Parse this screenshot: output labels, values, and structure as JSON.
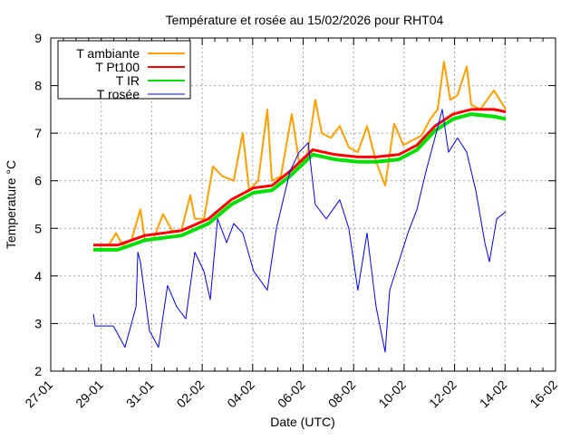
{
  "chart_data": {
    "type": "line",
    "title": "Température et rosée au 15/02/2026 pour RHT04",
    "xlabel": "Date (UTC)",
    "ylabel": "Temperature °C",
    "x_unit": "days since 27-01 00:00",
    "xlim": [
      0,
      20
    ],
    "ylim": [
      2,
      9
    ],
    "xticks": [
      {
        "v": 0,
        "label": "27-01"
      },
      {
        "v": 2,
        "label": "29-01"
      },
      {
        "v": 4,
        "label": "31-01"
      },
      {
        "v": 6,
        "label": "02-02"
      },
      {
        "v": 8,
        "label": "04-02"
      },
      {
        "v": 10,
        "label": "06-02"
      },
      {
        "v": 12,
        "label": "08-02"
      },
      {
        "v": 14,
        "label": "10-02"
      },
      {
        "v": 16,
        "label": "12-02"
      },
      {
        "v": 18,
        "label": "14-02"
      },
      {
        "v": 20,
        "label": "16-02"
      }
    ],
    "yticks": [
      {
        "v": 2,
        "label": "2"
      },
      {
        "v": 3,
        "label": "3"
      },
      {
        "v": 4,
        "label": "4"
      },
      {
        "v": 5,
        "label": "5"
      },
      {
        "v": 6,
        "label": "6"
      },
      {
        "v": 7,
        "label": "7"
      },
      {
        "v": 8,
        "label": "8"
      },
      {
        "v": 9,
        "label": "9"
      }
    ],
    "grid": true,
    "legend_position": "top-left",
    "series": [
      {
        "name": "T ambiante",
        "color": "#ffa000",
        "points": [
          [
            1.69,
            4.65
          ],
          [
            2.3,
            4.65
          ],
          [
            2.59,
            4.9
          ],
          [
            2.84,
            4.65
          ],
          [
            3.2,
            4.75
          ],
          [
            3.55,
            5.4
          ],
          [
            3.73,
            4.75
          ],
          [
            4.09,
            4.8
          ],
          [
            4.45,
            5.3
          ],
          [
            4.81,
            4.95
          ],
          [
            5.17,
            4.95
          ],
          [
            5.53,
            5.7
          ],
          [
            5.71,
            5.2
          ],
          [
            6.07,
            5.2
          ],
          [
            6.43,
            6.3
          ],
          [
            6.79,
            6.1
          ],
          [
            7.25,
            6.0
          ],
          [
            7.61,
            7.0
          ],
          [
            7.86,
            5.8
          ],
          [
            8.22,
            6.0
          ],
          [
            8.58,
            7.5
          ],
          [
            8.76,
            6.0
          ],
          [
            9.12,
            6.1
          ],
          [
            9.55,
            7.4
          ],
          [
            9.84,
            6.4
          ],
          [
            10.13,
            6.4
          ],
          [
            10.48,
            7.7
          ],
          [
            10.74,
            7.0
          ],
          [
            11.1,
            6.9
          ],
          [
            11.45,
            7.15
          ],
          [
            11.81,
            6.7
          ],
          [
            12.17,
            6.6
          ],
          [
            12.53,
            7.15
          ],
          [
            12.89,
            6.4
          ],
          [
            13.25,
            5.9
          ],
          [
            13.61,
            7.2
          ],
          [
            13.97,
            6.75
          ],
          [
            14.33,
            6.85
          ],
          [
            14.69,
            6.95
          ],
          [
            15.04,
            7.3
          ],
          [
            15.33,
            7.5
          ],
          [
            15.58,
            8.5
          ],
          [
            15.83,
            7.7
          ],
          [
            16.12,
            7.8
          ],
          [
            16.48,
            8.4
          ],
          [
            16.66,
            7.6
          ],
          [
            17.02,
            7.5
          ],
          [
            17.56,
            7.9
          ],
          [
            18.03,
            7.5
          ]
        ]
      },
      {
        "name": "T Pt100",
        "color": "#ff0000",
        "points": [
          [
            1.69,
            4.65
          ],
          [
            2.66,
            4.65
          ],
          [
            3.73,
            4.85
          ],
          [
            5.17,
            4.95
          ],
          [
            6.25,
            5.2
          ],
          [
            7.15,
            5.6
          ],
          [
            8.04,
            5.85
          ],
          [
            8.76,
            5.9
          ],
          [
            9.48,
            6.2
          ],
          [
            10.38,
            6.65
          ],
          [
            11.27,
            6.55
          ],
          [
            12.17,
            6.5
          ],
          [
            12.89,
            6.5
          ],
          [
            13.79,
            6.55
          ],
          [
            14.51,
            6.75
          ],
          [
            15.22,
            7.15
          ],
          [
            15.94,
            7.4
          ],
          [
            16.66,
            7.5
          ],
          [
            17.56,
            7.5
          ],
          [
            18.03,
            7.45
          ]
        ]
      },
      {
        "name": "T IR",
        "color": "#00e000",
        "points": [
          [
            1.69,
            4.55
          ],
          [
            2.66,
            4.55
          ],
          [
            3.73,
            4.75
          ],
          [
            5.17,
            4.85
          ],
          [
            6.25,
            5.1
          ],
          [
            7.15,
            5.5
          ],
          [
            8.04,
            5.75
          ],
          [
            8.76,
            5.8
          ],
          [
            9.48,
            6.1
          ],
          [
            10.38,
            6.55
          ],
          [
            11.27,
            6.45
          ],
          [
            12.17,
            6.4
          ],
          [
            12.89,
            6.4
          ],
          [
            13.79,
            6.45
          ],
          [
            14.51,
            6.65
          ],
          [
            15.22,
            7.05
          ],
          [
            15.94,
            7.3
          ],
          [
            16.66,
            7.4
          ],
          [
            17.56,
            7.35
          ],
          [
            18.03,
            7.3
          ]
        ]
      },
      {
        "name": "T rosée",
        "color": "#0000ff",
        "points": [
          [
            1.69,
            3.2
          ],
          [
            1.76,
            2.95
          ],
          [
            2.48,
            2.95
          ],
          [
            2.94,
            2.5
          ],
          [
            3.38,
            3.35
          ],
          [
            3.45,
            4.5
          ],
          [
            3.55,
            4.3
          ],
          [
            3.91,
            2.85
          ],
          [
            4.27,
            2.5
          ],
          [
            4.63,
            3.8
          ],
          [
            4.99,
            3.35
          ],
          [
            5.35,
            3.1
          ],
          [
            5.71,
            4.5
          ],
          [
            6.07,
            4.1
          ],
          [
            6.32,
            3.5
          ],
          [
            6.61,
            5.2
          ],
          [
            6.97,
            4.7
          ],
          [
            7.25,
            5.1
          ],
          [
            7.61,
            4.9
          ],
          [
            8.04,
            4.1
          ],
          [
            8.58,
            3.7
          ],
          [
            8.94,
            5.0
          ],
          [
            9.48,
            6.2
          ],
          [
            9.84,
            6.6
          ],
          [
            10.2,
            6.8
          ],
          [
            10.48,
            5.5
          ],
          [
            10.92,
            5.2
          ],
          [
            11.45,
            5.6
          ],
          [
            11.81,
            5.0
          ],
          [
            12.17,
            3.7
          ],
          [
            12.53,
            4.9
          ],
          [
            12.89,
            3.35
          ],
          [
            13.25,
            2.4
          ],
          [
            13.43,
            3.7
          ],
          [
            13.79,
            4.3
          ],
          [
            14.15,
            4.9
          ],
          [
            14.51,
            5.4
          ],
          [
            14.87,
            6.2
          ],
          [
            15.22,
            6.9
          ],
          [
            15.51,
            7.5
          ],
          [
            15.76,
            6.6
          ],
          [
            16.12,
            6.9
          ],
          [
            16.48,
            6.6
          ],
          [
            16.84,
            5.8
          ],
          [
            17.2,
            4.7
          ],
          [
            17.38,
            4.3
          ],
          [
            17.67,
            5.2
          ],
          [
            18.03,
            5.35
          ]
        ]
      }
    ]
  }
}
